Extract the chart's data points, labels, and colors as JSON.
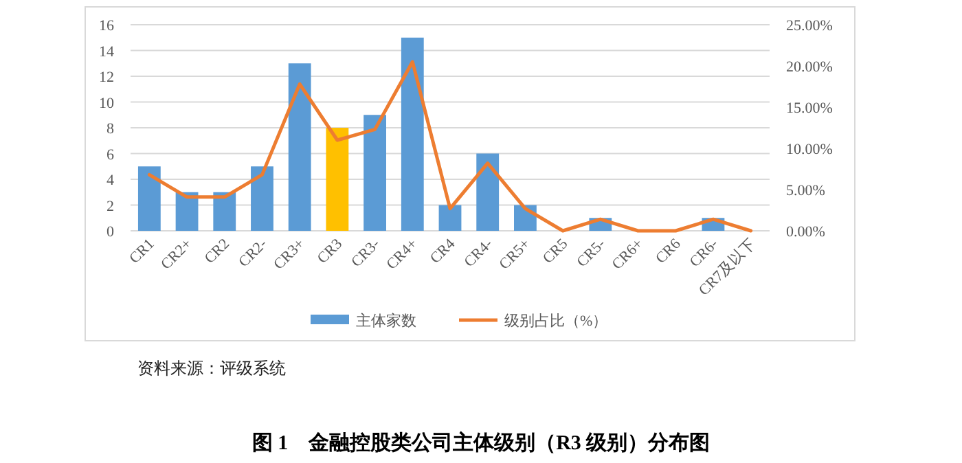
{
  "chart_data": {
    "type": "bar",
    "title": "图 1　金融控股类公司主体级别（R3 级别）分布图",
    "annotations": [
      "资料来源：评级系统"
    ],
    "categories": [
      "CR1",
      "CR2+",
      "CR2",
      "CR2-",
      "CR3+",
      "CR3",
      "CR3-",
      "CR4+",
      "CR4",
      "CR4-",
      "CR5+",
      "CR5",
      "CR5-",
      "CR6+",
      "CR6",
      "CR6-",
      "CR7及以下"
    ],
    "series": [
      {
        "name": "主体家数",
        "color": "#5b9bd5",
        "colors": [
          "#5b9bd5",
          "#5b9bd5",
          "#5b9bd5",
          "#5b9bd5",
          "#5b9bd5",
          "#ffc000",
          "#5b9bd5",
          "#5b9bd5",
          "#5b9bd5",
          "#5b9bd5",
          "#5b9bd5",
          "#5b9bd5",
          "#5b9bd5",
          "#5b9bd5",
          "#5b9bd5",
          "#5b9bd5",
          "#5b9bd5"
        ],
        "values": [
          5,
          3,
          3,
          5,
          13,
          8,
          9,
          15,
          2,
          6,
          2,
          0,
          1,
          0,
          0,
          1,
          0
        ]
      },
      {
        "name": "级别占比（%）",
        "type": "line",
        "axis": "y2",
        "color": "#ed7d31",
        "values": [
          6.8,
          4.1,
          4.1,
          6.8,
          17.8,
          11.0,
          12.3,
          20.5,
          2.7,
          8.2,
          2.7,
          0,
          1.4,
          0,
          0,
          1.4,
          0
        ]
      }
    ],
    "ylim": [
      0,
      16
    ],
    "yticks": [
      0,
      2,
      4,
      6,
      8,
      10,
      12,
      14,
      16
    ],
    "y2lim": [
      0,
      25
    ],
    "y2ticks": [
      {
        "value": 0,
        "label": "0.00%"
      },
      {
        "value": 5,
        "label": "5.00%"
      },
      {
        "value": 10,
        "label": "10.00%"
      },
      {
        "value": 15,
        "label": "15.00%"
      },
      {
        "value": 20,
        "label": "20.00%"
      },
      {
        "value": 25,
        "label": "25.00%"
      }
    ],
    "grid": "y",
    "legend": "bottom",
    "marker": "none",
    "line_style": "solid"
  }
}
